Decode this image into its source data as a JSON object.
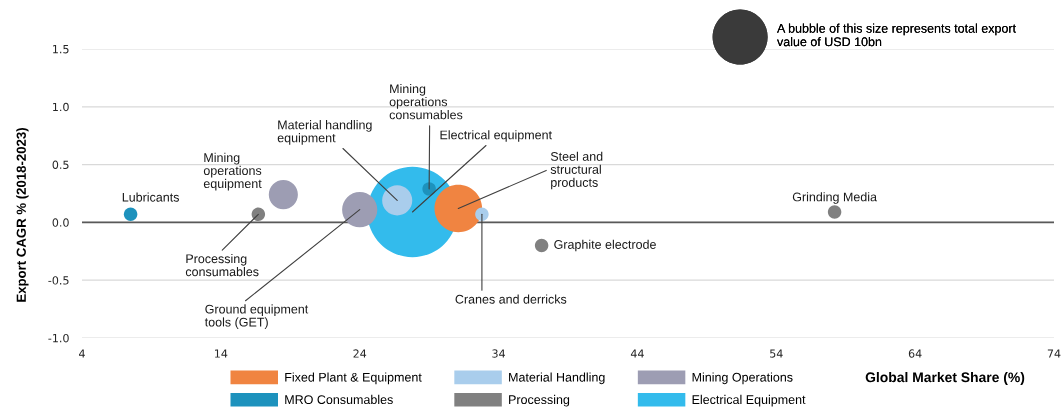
{
  "chart_data": {
    "type": "bubble",
    "xlabel": "Global Market Share (%)",
    "ylabel": "Export CAGR % (2018-2023)",
    "xlim": [
      4,
      74
    ],
    "xticks": [
      4,
      14,
      24,
      34,
      44,
      54,
      64,
      74
    ],
    "ylim": [
      -1.0,
      1.5
    ],
    "yticks": [
      {
        "value": -1.0,
        "label": "-1.0"
      },
      {
        "value": -0.5,
        "label": "-0.5"
      },
      {
        "value": 0.0,
        "label": "0.0"
      },
      {
        "value": 0.5,
        "label": "0.5"
      },
      {
        "value": 1.0,
        "label": "1.0"
      },
      {
        "value": 1.5,
        "label": "1.5"
      }
    ],
    "grid": "y",
    "legend": "bottom",
    "marker": "circle",
    "size_legend": [
      {
        "value": 10,
        "label": "A bubble of this size represents total export\nvalue of USD 10bn"
      }
    ],
    "ref_lines": [
      {
        "axis": "y",
        "value": 0,
        "color": "#595959"
      }
    ],
    "series": [
      {
        "name": "Fixed Plant & Equipment",
        "color": "#f08441",
        "x": [
          31.1
        ],
        "values": [
          0.12
        ],
        "sizes": [
          7.5
        ]
      },
      {
        "name": "Material Handling",
        "color": "#a9cdec",
        "x": [
          26.7,
          32.8
        ],
        "values": [
          0.19,
          0.07
        ],
        "sizes": [
          3.0,
          0.6
        ]
      },
      {
        "name": "Mining Operations",
        "color": "#9d9db3",
        "x": [
          18.5,
          24.0
        ],
        "values": [
          0.24,
          0.11
        ],
        "sizes": [
          2.8,
          4.1
        ]
      },
      {
        "name": "MRO Consumables",
        "color": "#1d92bd",
        "x": [
          7.5,
          29.0
        ],
        "values": [
          0.07,
          0.29
        ],
        "sizes": [
          0.6,
          0.6
        ]
      },
      {
        "name": "Processing",
        "color": "#808080",
        "x": [
          16.7,
          37.1,
          58.2
        ],
        "values": [
          0.07,
          -0.2,
          0.09
        ],
        "sizes": [
          0.6,
          0.6,
          0.6
        ]
      },
      {
        "name": "Electrical Equipment",
        "color": "#33bbec",
        "x": [
          27.8
        ],
        "values": [
          0.09
        ],
        "sizes": [
          27
        ]
      }
    ],
    "annotations": [
      {
        "text": "Lubricants",
        "x": 7.5,
        "y": 0.07
      },
      {
        "text": "Mining\noperations\nequipment",
        "x": 18.5,
        "y": 0.24
      },
      {
        "text": "Processing\nconsumables",
        "x": 16.7,
        "y": 0.07
      },
      {
        "text": "Ground equipment\ntools (GET)",
        "x": 24.0,
        "y": 0.11
      },
      {
        "text": "Material handling\nequipment",
        "x": 26.7,
        "y": 0.19
      },
      {
        "text": "Mining\noperations\nconsumables",
        "x": 29.0,
        "y": 0.29
      },
      {
        "text": "Electrical equipment",
        "x": 27.8,
        "y": 0.09
      },
      {
        "text": "Steel and\nstructural\nproducts",
        "x": 31.1,
        "y": 0.12
      },
      {
        "text": "Cranes and derricks",
        "x": 32.8,
        "y": 0.07
      },
      {
        "text": "Graphite electrode",
        "x": 37.1,
        "y": -0.2
      },
      {
        "text": "Grinding Media",
        "x": 58.2,
        "y": 0.09
      }
    ]
  }
}
